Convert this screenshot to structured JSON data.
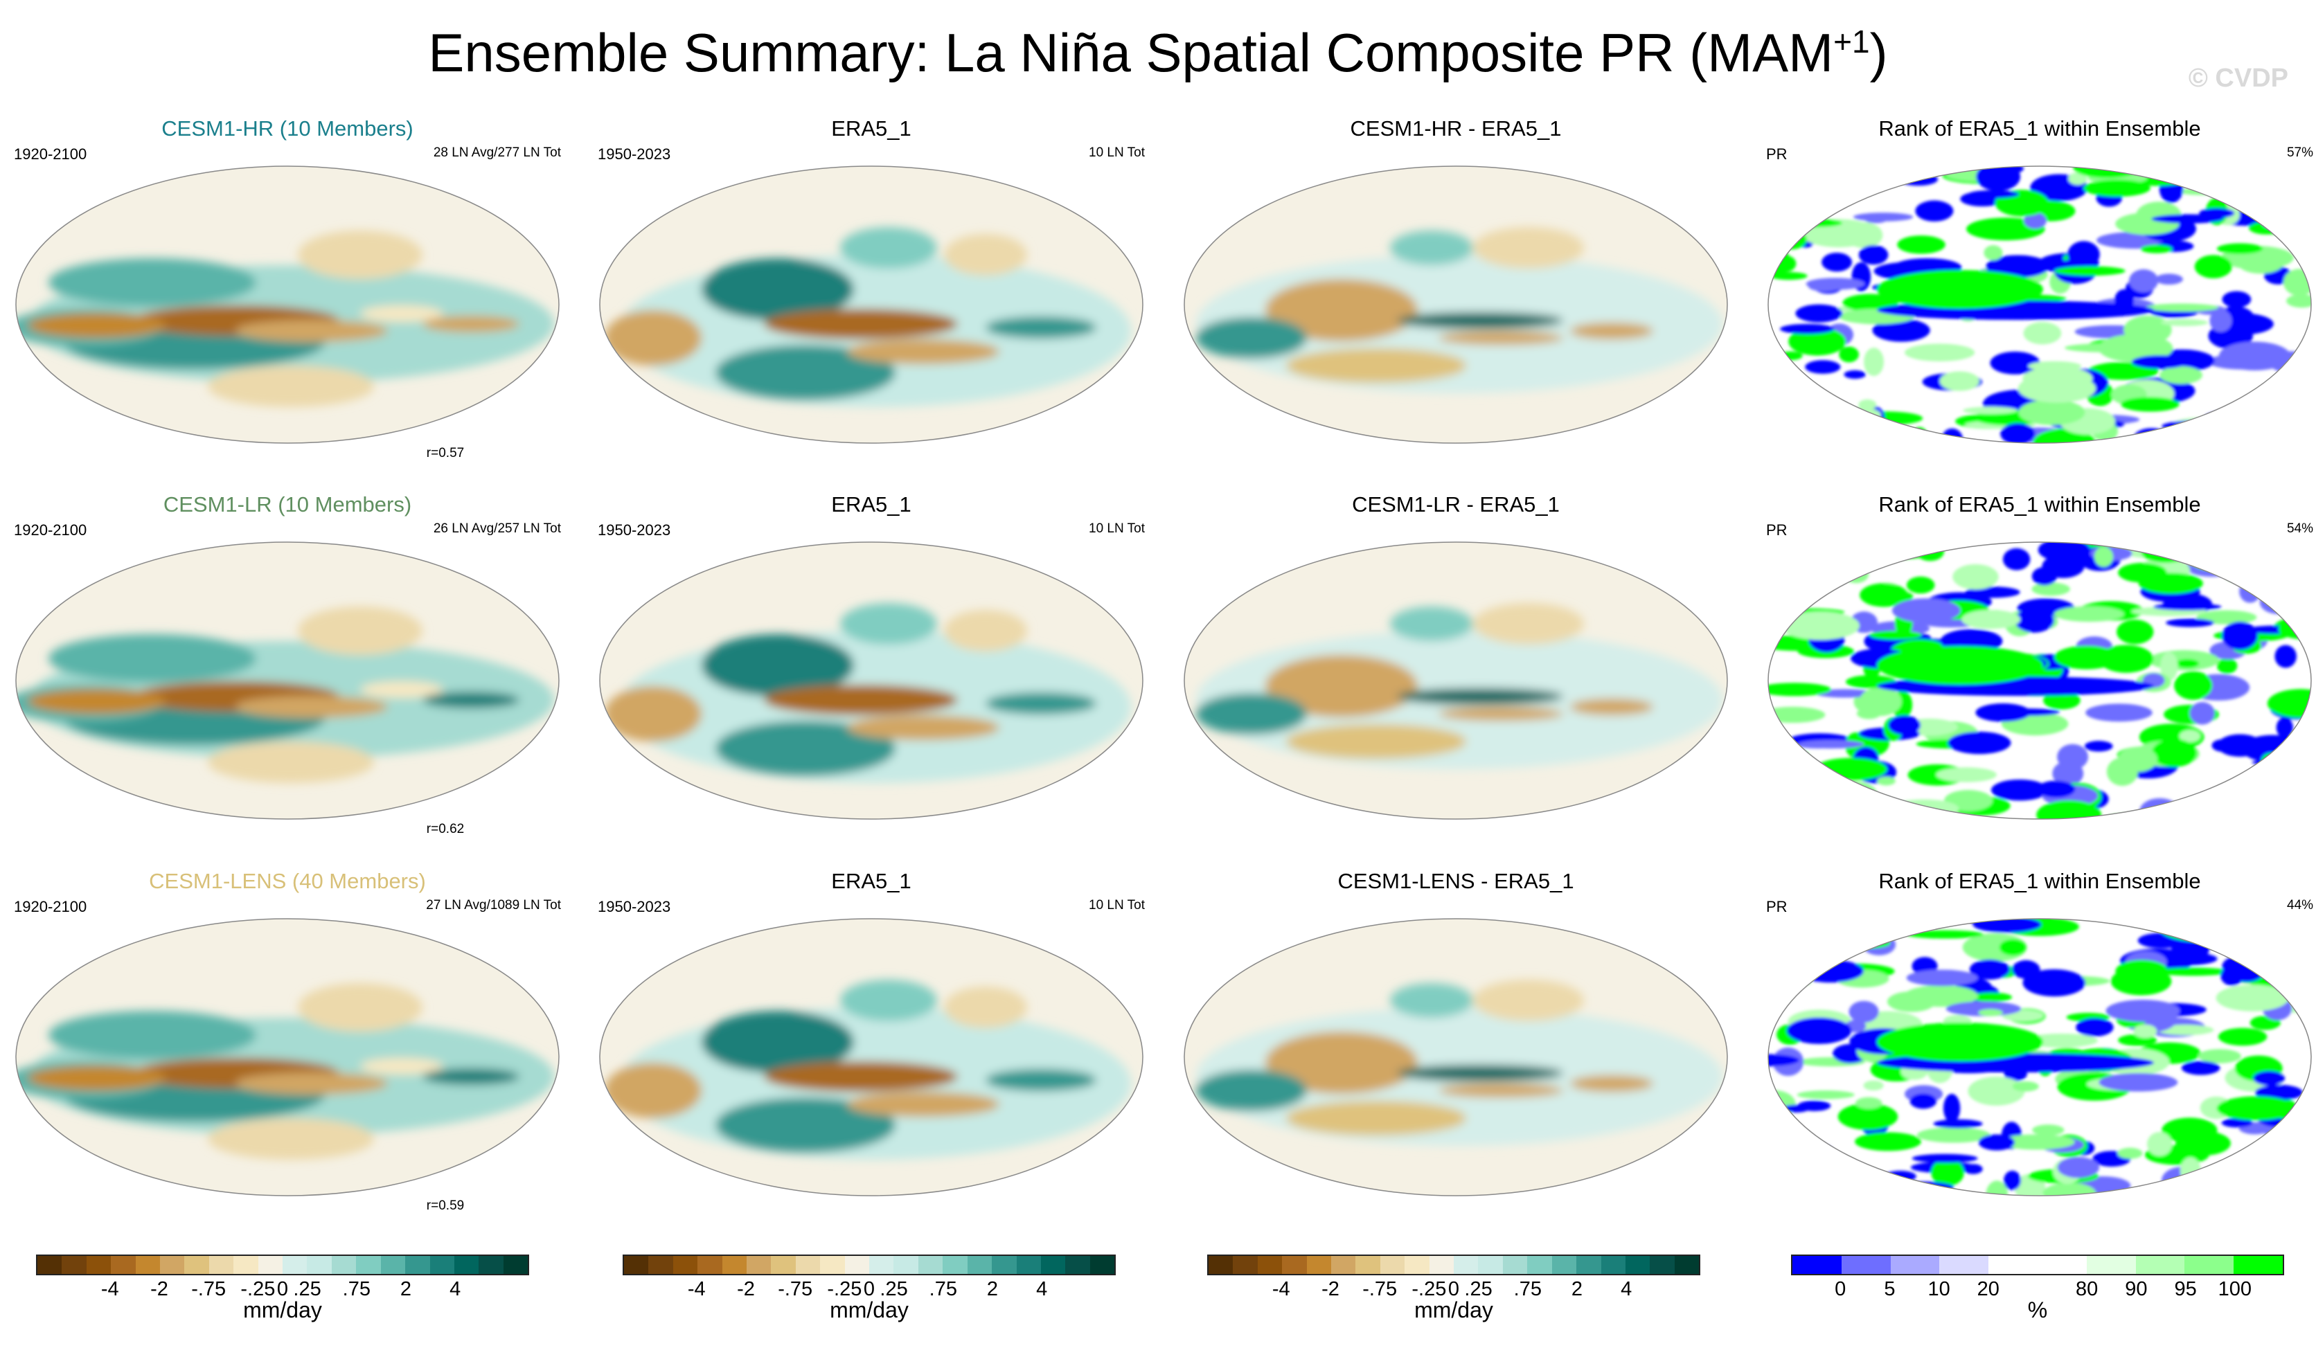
{
  "title": "Ensemble Summary: La Niña Spatial Composite PR (MAM",
  "title_sup": "+1",
  "title_close": ")",
  "watermark": "© CVDP",
  "colors": {
    "brown_green_scale": [
      "#543005",
      "#72420c",
      "#8c510a",
      "#a96920",
      "#c4872e",
      "#d1a664",
      "#dfc27d",
      "#ecd9ab",
      "#f6e8c3",
      "#f5f1e4",
      "#e8f3f1",
      "#d5eeea",
      "#c7eae5",
      "#a6dbd2",
      "#80cdc1",
      "#5ab4a9",
      "#35978f",
      "#1a7f79",
      "#01665e",
      "#064f48",
      "#003c30"
    ],
    "rank_scale": [
      "#0000ff",
      "#6e6eff",
      "#aaaaff",
      "#dadaff",
      "#ffffff",
      "#ffffff",
      "#e2ffe2",
      "#b4ffb4",
      "#8cff8c",
      "#00ff00"
    ],
    "model_hr": "#1a7f8c",
    "model_lr": "#5f8f5f",
    "model_lens": "#d8c078"
  },
  "rows": [
    {
      "model_title": "CESM1-HR (10 Members)",
      "model_color": "#1a7f8c",
      "model_years": "1920-2100",
      "model_count": "28 LN Avg/277 LN Tot",
      "corr": "r=0.57",
      "obs_title": "ERA5_1",
      "obs_years": "1950-2023",
      "obs_count": "10 LN Tot",
      "diff_title": "CESM1-HR - ERA5_1",
      "rank_title": "Rank of ERA5_1 within Ensemble",
      "rank_var": "PR",
      "rank_pct": "57%"
    },
    {
      "model_title": "CESM1-LR (10 Members)",
      "model_color": "#5f8f5f",
      "model_years": "1920-2100",
      "model_count": "26 LN Avg/257 LN Tot",
      "corr": "r=0.62",
      "obs_title": "ERA5_1",
      "obs_years": "1950-2023",
      "obs_count": "10 LN Tot",
      "diff_title": "CESM1-LR - ERA5_1",
      "rank_title": "Rank of ERA5_1 within Ensemble",
      "rank_var": "PR",
      "rank_pct": "54%"
    },
    {
      "model_title": "CESM1-LENS (40 Members)",
      "model_color": "#d8c078",
      "model_years": "1920-2100",
      "model_count": "27 LN Avg/1089 LN Tot",
      "corr": "r=0.59",
      "obs_title": "ERA5_1",
      "obs_years": "1950-2023",
      "obs_count": "10 LN Tot",
      "diff_title": "CESM1-LENS - ERA5_1",
      "rank_title": "Rank of ERA5_1 within Ensemble",
      "rank_var": "PR",
      "rank_pct": "44%"
    }
  ],
  "colorbar_pr": {
    "ticks": [
      "-4",
      "-2",
      "-.75",
      "-.25",
      "0",
      ".25",
      ".75",
      "2",
      "4"
    ],
    "unit": "mm/day"
  },
  "colorbar_rank": {
    "ticks": [
      "0",
      "5",
      "10",
      "20",
      "80",
      "90",
      "95",
      "100"
    ],
    "unit": "%"
  }
}
